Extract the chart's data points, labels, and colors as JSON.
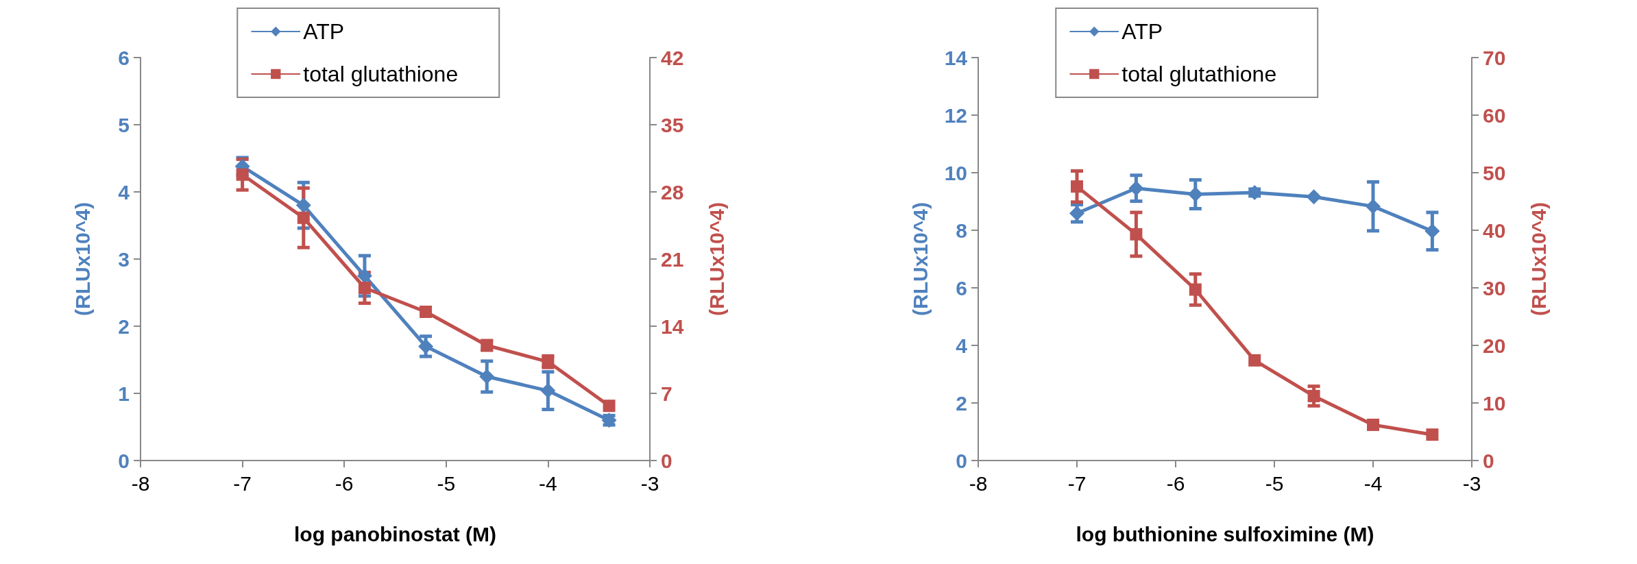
{
  "chart_data": [
    {
      "type": "line",
      "xlabel": "log panobinostat (M)",
      "ylabel": "(RLUx10^4)",
      "y2label": "(RLUx10^4)",
      "x": [
        -7,
        -6.4,
        -5.8,
        -5.2,
        -4.6,
        -4,
        -3.4
      ],
      "xlim": [
        -8,
        -3
      ],
      "xticks": [
        -8,
        -7,
        -6,
        -5,
        -4,
        -3
      ],
      "ylim": [
        0,
        6
      ],
      "yticks": [
        0,
        1,
        2,
        3,
        4,
        5,
        6
      ],
      "y2lim": [
        0,
        42
      ],
      "y2ticks": [
        0,
        7,
        14,
        21,
        28,
        35,
        42
      ],
      "grid": false,
      "legend": "top",
      "series": [
        {
          "name": "ATP",
          "color": "#4f81bd",
          "marker": "diamond",
          "values": [
            4.38,
            3.8,
            2.75,
            1.7,
            1.25,
            1.04,
            0.6
          ],
          "errors": [
            0.13,
            0.34,
            0.3,
            0.15,
            0.23,
            0.28,
            0.07
          ]
        },
        {
          "name": "total glutathione",
          "color": "#c0504d",
          "marker": "square",
          "axis": "y2",
          "values": [
            29.8,
            25.3,
            18.0,
            15.5,
            12.0,
            10.3,
            5.7
          ],
          "errors": [
            1.6,
            3.1,
            1.6,
            null,
            0.5,
            0.6,
            null
          ]
        }
      ]
    },
    {
      "type": "line",
      "xlabel": "log buthionine sulfoximine (M)",
      "ylabel": "(RLUx10^4)",
      "y2label": "(RLUx10^4)",
      "x": [
        -7,
        -6.4,
        -5.8,
        -5.2,
        -4.6,
        -4,
        -3.4
      ],
      "xlim": [
        -8,
        -3
      ],
      "xticks": [
        -8,
        -7,
        -6,
        -5,
        -4,
        -3
      ],
      "ylim": [
        0,
        14
      ],
      "yticks": [
        0,
        2,
        4,
        6,
        8,
        10,
        12,
        14
      ],
      "y2lim": [
        0,
        70
      ],
      "y2ticks": [
        0,
        10,
        20,
        30,
        40,
        50,
        60,
        70
      ],
      "grid": false,
      "legend": "top",
      "series": [
        {
          "name": "ATP",
          "color": "#4f81bd",
          "marker": "diamond",
          "values": [
            8.59,
            9.46,
            9.25,
            9.31,
            9.16,
            8.83,
            7.97
          ],
          "errors": [
            0.3,
            0.45,
            0.5,
            0.12,
            null,
            0.85,
            0.65
          ]
        },
        {
          "name": "total glutathione",
          "color": "#c0504d",
          "marker": "square",
          "axis": "y2",
          "values": [
            47.6,
            39.3,
            29.7,
            17.4,
            11.2,
            6.2,
            4.5
          ],
          "errors": [
            2.7,
            3.8,
            2.7,
            null,
            1.7,
            null,
            null
          ]
        }
      ]
    }
  ]
}
